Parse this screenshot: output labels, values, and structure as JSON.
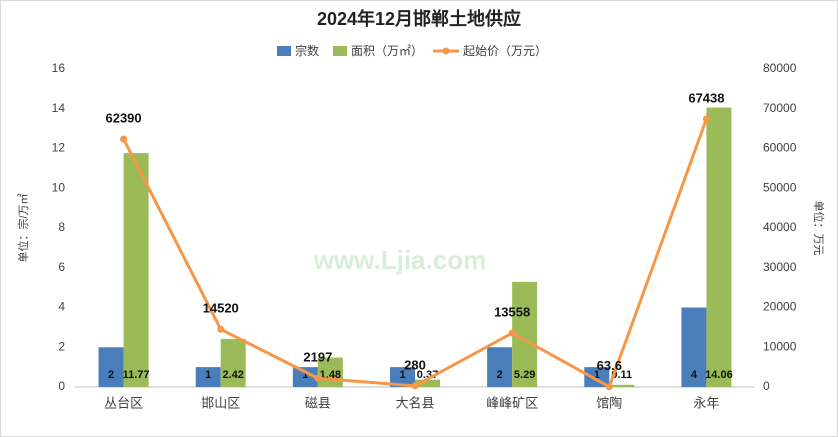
{
  "chart_data": {
    "type": "bar-line",
    "title": "2024年12月邯郸土地供应",
    "ylabel": "单位：宗/万㎡",
    "y2label": "单位：万元",
    "watermark": "www.Ljia.com",
    "categories": [
      "丛台区",
      "邯山区",
      "磁县",
      "大名县",
      "峰峰矿区",
      "馆陶",
      "永年"
    ],
    "series": [
      {
        "name": "宗数",
        "type": "bar",
        "color": "#4a7ebb",
        "values": [
          2,
          1,
          1,
          1,
          2,
          1,
          4
        ]
      },
      {
        "name": "面积（万㎡）",
        "type": "bar",
        "color": "#9bbb59",
        "values": [
          11.77,
          2.42,
          1.48,
          0.37,
          5.29,
          0.11,
          14.06
        ]
      },
      {
        "name": "起始价（万元）",
        "type": "line",
        "axis": "y2",
        "color": "#f79646",
        "values": [
          62390,
          14520,
          2197,
          280,
          13558,
          63.6,
          67438
        ]
      }
    ],
    "ylim": [
      0,
      16
    ],
    "yticks": [
      0,
      2,
      4,
      6,
      8,
      10,
      12,
      14,
      16
    ],
    "y2lim": [
      0,
      80000
    ],
    "y2ticks": [
      0,
      10000,
      20000,
      30000,
      40000,
      50000,
      60000,
      70000,
      80000
    ],
    "grid": false
  }
}
